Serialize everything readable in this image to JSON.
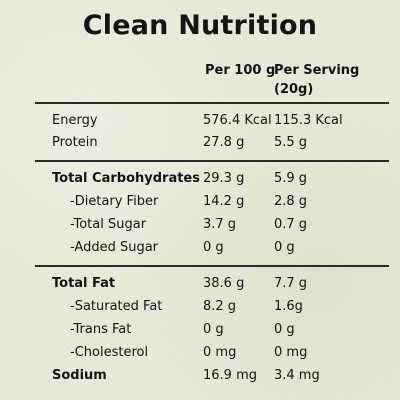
{
  "title": "Clean Nutrition",
  "columns": {
    "per100": "Per 100 g",
    "perServing": "Per Serving (20g)"
  },
  "rows": [
    {
      "label": "Energy",
      "per100": "576.4 Kcal",
      "perServing": "115.3 Kcal"
    },
    {
      "label": "Protein",
      "per100": "27.8 g",
      "perServing": "5.5 g"
    },
    {
      "label": "Total Carbohydrates",
      "per100": "29.3 g",
      "perServing": "5.9 g"
    },
    {
      "label": "-Dietary Fiber",
      "per100": "14.2 g",
      "perServing": "2.8 g"
    },
    {
      "label": "-Total Sugar",
      "per100": "3.7 g",
      "perServing": "0.7 g"
    },
    {
      "label": "-Added Sugar",
      "per100": "0 g",
      "perServing": "0 g"
    },
    {
      "label": "Total Fat",
      "per100": "38.6 g",
      "perServing": "7.7 g"
    },
    {
      "label": "-Saturated Fat",
      "per100": "8.2 g",
      "perServing": "1.6g"
    },
    {
      "label": "-Trans Fat",
      "per100": "0 g",
      "perServing": "0 g"
    },
    {
      "label": "-Cholesterol",
      "per100": "0 mg",
      "perServing": "0 mg"
    },
    {
      "label": "Sodium",
      "per100": "16.9 mg",
      "perServing": "3.4 mg"
    }
  ]
}
